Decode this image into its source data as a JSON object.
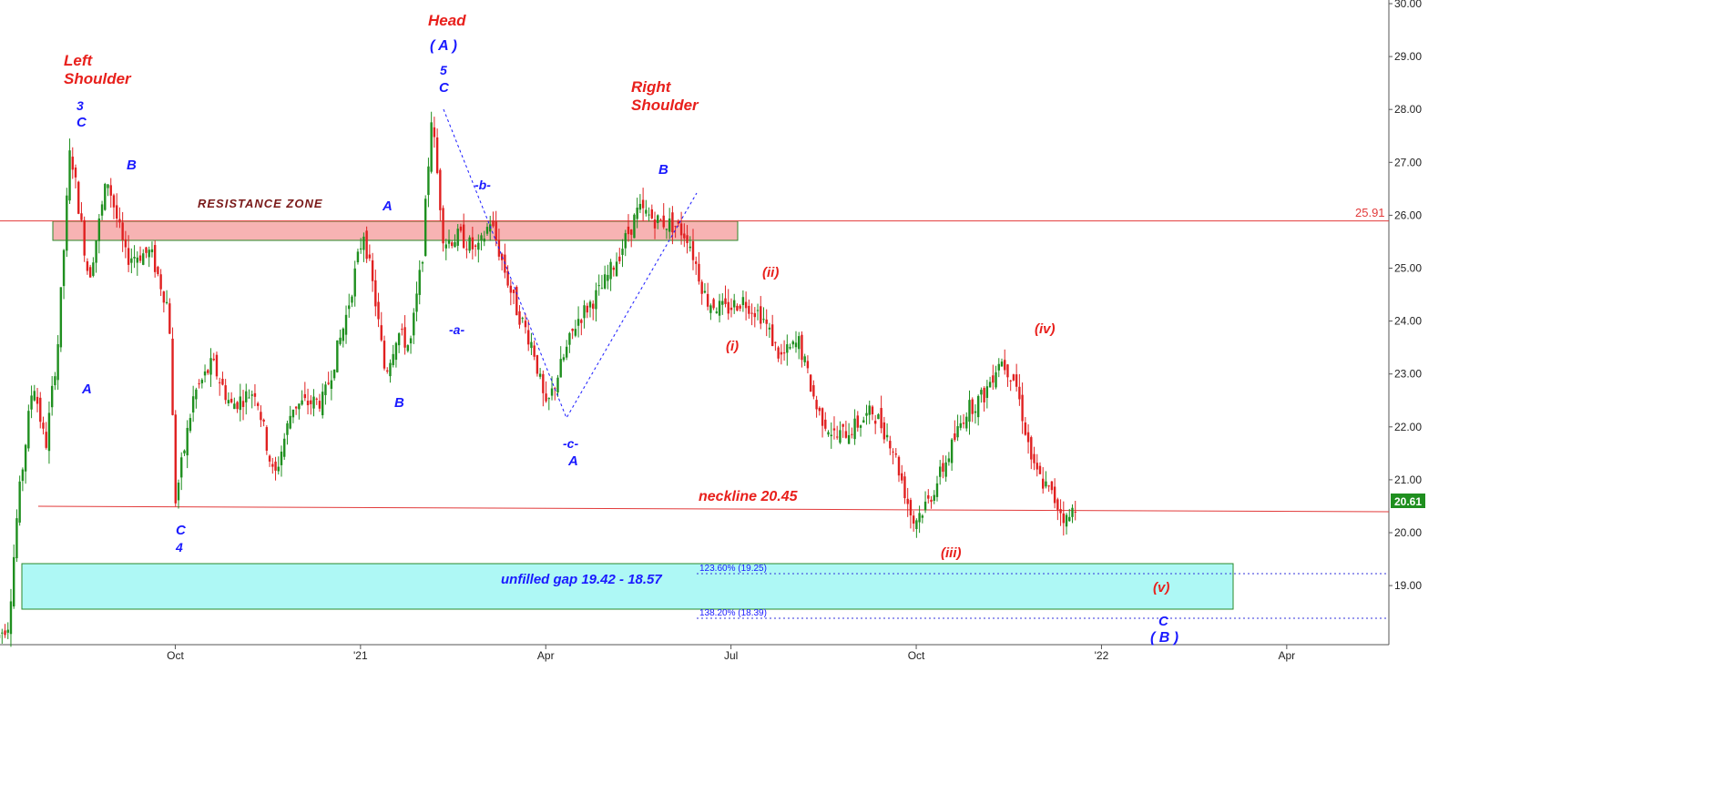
{
  "chart_data": {
    "type": "candlestick",
    "title": "",
    "xlabel": "",
    "ylabel": "",
    "ylim": [
      18.0,
      30.0
    ],
    "x_ticks": [
      "Oct",
      "'21",
      "Apr",
      "Jul",
      "Oct",
      "'22",
      "Apr"
    ],
    "x_tick_months": [
      3,
      6,
      9,
      12,
      15,
      18,
      21
    ],
    "y_ticks": [
      "19.00",
      "20.00",
      "21.00",
      "22.00",
      "23.00",
      "24.00",
      "25.00",
      "26.00",
      "27.00",
      "28.00",
      "29.00",
      "30.00"
    ],
    "last_price": "20.61",
    "colors": {
      "up": "#1f8f1f",
      "down": "#e02020",
      "wave": "#1a1aff",
      "label_red": "#e8201c"
    },
    "price_path": [
      [
        0.1,
        18.0
      ],
      [
        0.3,
        18.3
      ],
      [
        0.45,
        20.5
      ],
      [
        0.7,
        22.9
      ],
      [
        0.9,
        21.6
      ],
      [
        1.1,
        23.6
      ],
      [
        1.3,
        27.3
      ],
      [
        1.6,
        24.8
      ],
      [
        1.9,
        26.7
      ],
      [
        2.2,
        25.2
      ],
      [
        2.6,
        25.3
      ],
      [
        2.9,
        24.2
      ],
      [
        3.0,
        20.6
      ],
      [
        3.3,
        22.6
      ],
      [
        3.6,
        23.2
      ],
      [
        3.9,
        22.4
      ],
      [
        4.3,
        22.7
      ],
      [
        4.6,
        21.0
      ],
      [
        4.9,
        22.4
      ],
      [
        5.4,
        22.5
      ],
      [
        5.75,
        24.0
      ],
      [
        6.05,
        25.7
      ],
      [
        6.25,
        24.3
      ],
      [
        6.4,
        23.0
      ],
      [
        6.6,
        23.8
      ],
      [
        6.8,
        23.5
      ],
      [
        7.0,
        25.2
      ],
      [
        7.15,
        27.9
      ],
      [
        7.35,
        25.5
      ],
      [
        7.6,
        25.6
      ],
      [
        7.9,
        25.3
      ],
      [
        8.1,
        25.9
      ],
      [
        8.25,
        25.3
      ],
      [
        8.5,
        24.3
      ],
      [
        8.8,
        23.5
      ],
      [
        9.0,
        22.3
      ],
      [
        9.2,
        23.0
      ],
      [
        9.5,
        24.0
      ],
      [
        9.9,
        24.6
      ],
      [
        10.2,
        25.3
      ],
      [
        10.5,
        26.1
      ],
      [
        10.8,
        25.9
      ],
      [
        11.1,
        25.8
      ],
      [
        11.3,
        25.6
      ],
      [
        11.6,
        24.4
      ],
      [
        11.9,
        24.2
      ],
      [
        12.2,
        24.4
      ],
      [
        12.5,
        24.1
      ],
      [
        12.8,
        23.3
      ],
      [
        13.1,
        23.6
      ],
      [
        13.4,
        22.3
      ],
      [
        13.7,
        21.8
      ],
      [
        14.0,
        22.0
      ],
      [
        14.3,
        22.3
      ],
      [
        14.6,
        21.7
      ],
      [
        14.95,
        20.2
      ],
      [
        15.2,
        20.6
      ],
      [
        15.5,
        21.4
      ],
      [
        15.8,
        22.3
      ],
      [
        16.1,
        22.6
      ],
      [
        16.35,
        23.3
      ],
      [
        16.6,
        22.9
      ],
      [
        16.9,
        21.2
      ],
      [
        17.2,
        20.7
      ],
      [
        17.45,
        20.2
      ],
      [
        17.6,
        20.6
      ]
    ],
    "lines": {
      "resistance": 25.91,
      "resistance_label": "25.91",
      "neckline_label": "neckline 20.45",
      "fib_1236_label": "123.60% (19.25)",
      "fib_1382_label": "138.20% (18.39)"
    },
    "zones": {
      "resistance_label": "RESISTANCE ZONE",
      "gap_label": "unfilled gap 19.42 - 18.57"
    },
    "annotations": {
      "head": "Head",
      "head_wave": "( A )",
      "head_5": "5",
      "head_c": "C",
      "left_shoulder_1": "Left",
      "left_shoulder_2": "Shoulder",
      "left_3": "3",
      "left_c": "C",
      "left_b": "B",
      "left_a": "A",
      "c4_c": "C",
      "c4_4": "4",
      "mid_a": "A",
      "mid_b": "B",
      "wave_a_small": "-a-",
      "wave_b_small": "-b-",
      "wave_c_small": "-c-",
      "wave_c_a": "A",
      "right_shoulder_1": "Right",
      "right_shoulder_2": "Shoulder",
      "right_b": "B",
      "w_i": "(i)",
      "w_ii": "(ii)",
      "w_iii": "(iii)",
      "w_iv": "(iv)",
      "w_v": "(v)",
      "end_c": "C",
      "end_b": "( B )"
    }
  }
}
